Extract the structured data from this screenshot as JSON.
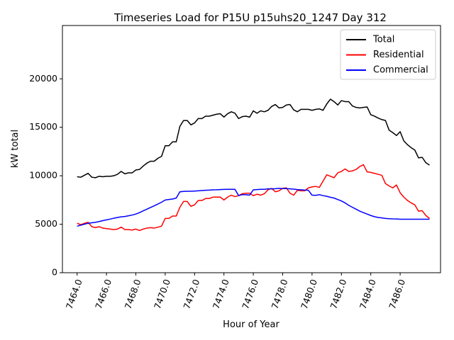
{
  "chart_data": {
    "type": "line",
    "title": "Timeseries Load for P15U p15uhs20_1247  Day 312",
    "xlabel": "Hour of Year",
    "ylabel": "kW total",
    "xlim": [
      7463.0,
      7488.75
    ],
    "ylim": [
      0,
      25500
    ],
    "x_start": 7464.0,
    "x_step": 0.25,
    "x_ticks": [
      7464,
      7466,
      7468,
      7470,
      7472,
      7474,
      7476,
      7478,
      7480,
      7482,
      7484,
      7486
    ],
    "x_tick_labels": [
      "7464.0",
      "7466.0",
      "7468.0",
      "7470.0",
      "7472.0",
      "7474.0",
      "7476.0",
      "7478.0",
      "7480.0",
      "7482.0",
      "7484.0",
      "7486.0"
    ],
    "y_ticks": [
      0,
      5000,
      10000,
      15000,
      20000
    ],
    "y_tick_labels": [
      "0",
      "5000",
      "10000",
      "15000",
      "20000"
    ],
    "legend_position": "top-right",
    "series": [
      {
        "name": "Total",
        "color": "#000000",
        "values": [
          9900,
          9850,
          10050,
          10250,
          9850,
          9800,
          9950,
          9900,
          9950,
          9950,
          10000,
          10150,
          10450,
          10200,
          10300,
          10300,
          10600,
          10650,
          11000,
          11300,
          11500,
          11500,
          11800,
          12000,
          13100,
          13100,
          13500,
          13500,
          15100,
          15700,
          15700,
          15250,
          15450,
          15900,
          15900,
          16150,
          16150,
          16250,
          16350,
          16400,
          16050,
          16400,
          16600,
          16450,
          15900,
          16100,
          16150,
          16050,
          16700,
          16450,
          16700,
          16600,
          16750,
          17150,
          17350,
          17000,
          17050,
          17300,
          17350,
          16800,
          16600,
          16850,
          16850,
          16850,
          16750,
          16850,
          16900,
          16750,
          17400,
          17900,
          17650,
          17300,
          17750,
          17650,
          17650,
          17200,
          17050,
          17000,
          17050,
          17100,
          16300,
          16150,
          15950,
          15800,
          15700,
          14700,
          14450,
          14150,
          14550,
          13600,
          13200,
          12900,
          12650,
          11850,
          11900,
          11350,
          11100
        ]
      },
      {
        "name": "Residential",
        "color": "#ff0000",
        "values": [
          5100,
          4950,
          5100,
          5200,
          4750,
          4650,
          4750,
          4600,
          4550,
          4500,
          4450,
          4500,
          4700,
          4450,
          4450,
          4400,
          4500,
          4350,
          4500,
          4600,
          4650,
          4600,
          4700,
          4800,
          5600,
          5600,
          5850,
          5850,
          6750,
          7350,
          7350,
          6850,
          7000,
          7450,
          7450,
          7650,
          7650,
          7800,
          7800,
          7800,
          7500,
          7800,
          8000,
          7850,
          7950,
          8150,
          8200,
          8200,
          7950,
          8100,
          8000,
          8150,
          8550,
          8700,
          8350,
          8450,
          8700,
          8750,
          8200,
          8000,
          8500,
          8450,
          8450,
          8750,
          8850,
          8900,
          8800,
          9450,
          10100,
          9950,
          9800,
          10300,
          10450,
          10700,
          10450,
          10500,
          10650,
          10950,
          11150,
          10400,
          10350,
          10250,
          10150,
          10050,
          9200,
          8950,
          8750,
          9050,
          8250,
          7800,
          7450,
          7200,
          7000,
          6350,
          6400,
          5900,
          5600
        ]
      },
      {
        "name": "Commercial",
        "color": "#0000ff",
        "values": [
          4800,
          4900,
          5000,
          5100,
          5150,
          5200,
          5280,
          5370,
          5450,
          5530,
          5620,
          5700,
          5760,
          5800,
          5870,
          5950,
          6050,
          6200,
          6380,
          6550,
          6730,
          6900,
          7080,
          7270,
          7500,
          7550,
          7600,
          7700,
          8350,
          8380,
          8400,
          8400,
          8420,
          8450,
          8480,
          8500,
          8520,
          8550,
          8560,
          8580,
          8590,
          8600,
          8600,
          8600,
          7950,
          8050,
          8050,
          8000,
          8550,
          8580,
          8600,
          8600,
          8650,
          8650,
          8670,
          8700,
          8680,
          8680,
          8650,
          8620,
          8580,
          8550,
          8520,
          8500,
          8000,
          7980,
          8050,
          7950,
          7880,
          7780,
          7700,
          7550,
          7400,
          7200,
          6950,
          6750,
          6550,
          6350,
          6200,
          6050,
          5900,
          5780,
          5700,
          5650,
          5600,
          5570,
          5550,
          5540,
          5520,
          5520,
          5520,
          5520,
          5520,
          5520,
          5520,
          5520,
          5520
        ]
      }
    ]
  }
}
